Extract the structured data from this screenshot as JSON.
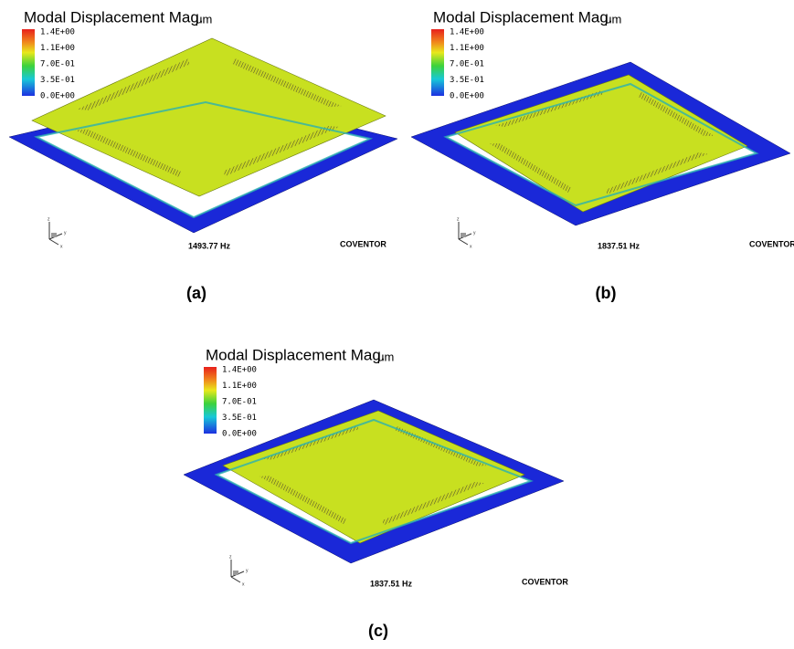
{
  "panels": [
    {
      "title": "Modal Displacement Mag.",
      "unit": "μm",
      "legend": [
        "1.4E+00",
        "1.1E+00",
        "7.0E-01",
        "3.5E-01",
        "0.0E+00"
      ],
      "axes": [
        "z",
        "y",
        "x"
      ],
      "frequency": "1493.77 Hz",
      "brand": "COVENTOR",
      "caption": "(a)"
    },
    {
      "title": "Modal Displacement Mag.",
      "unit": "μm",
      "legend": [
        "1.4E+00",
        "1.1E+00",
        "7.0E-01",
        "3.5E-01",
        "0.0E+00"
      ],
      "axes": [
        "z",
        "y",
        "x"
      ],
      "frequency": "1837.51 Hz",
      "brand": "COVENTOR",
      "caption": "(b)"
    },
    {
      "title": "Modal Displacement Mag.",
      "unit": "μm",
      "legend": [
        "1.4E+00",
        "1.1E+00",
        "7.0E-01",
        "3.5E-01",
        "0.0E+00"
      ],
      "axes": [
        "z",
        "y",
        "x"
      ],
      "frequency": "1837.51 Hz",
      "brand": "COVENTOR",
      "caption": "(c)"
    }
  ]
}
